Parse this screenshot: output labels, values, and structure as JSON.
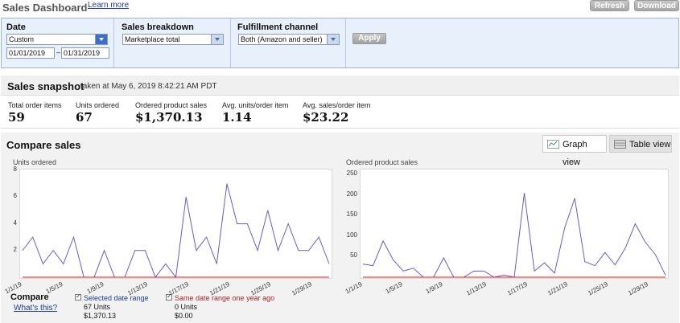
{
  "header": {
    "title": "Sales Dashboard",
    "learn_more": "Learn more",
    "refresh": "Refresh",
    "download": "Download"
  },
  "filters": {
    "date": {
      "label": "Date",
      "selected": "Custom",
      "from": "01/01/2019",
      "separator": "–",
      "to": "01/31/2019"
    },
    "breakdown": {
      "label": "Sales breakdown",
      "selected": "Marketplace total"
    },
    "fulfillment": {
      "label": "Fulfillment channel",
      "selected": "Both (Amazon and seller)"
    },
    "apply": "Apply"
  },
  "snapshot": {
    "title": "Sales snapshot",
    "taken_at": "taken at May 6, 2019 8:42:21 AM PDT",
    "metrics": [
      {
        "label": "Total order items",
        "value": "59"
      },
      {
        "label": "Units ordered",
        "value": "67"
      },
      {
        "label": "Ordered product sales",
        "value": "$1,370.13"
      },
      {
        "label": "Avg. units/order item",
        "value": "1.14"
      },
      {
        "label": "Avg. sales/order item",
        "value": "$23.22"
      }
    ]
  },
  "compare": {
    "title": "Compare sales",
    "graph_view": "Graph view",
    "table_view": "Table view",
    "legend_title": "Compare",
    "whats_this": "What's this?",
    "selected": {
      "label": "Selected date range",
      "units": "67 Units",
      "sales": "$1,370.13"
    },
    "last_year": {
      "label": "Same date range one year ago",
      "units": "0 Units",
      "sales": "$0.00"
    },
    "colors": {
      "selected": "#6a5acd",
      "last_year": "#cc2222"
    }
  },
  "chart_data": [
    {
      "type": "line",
      "title": "Units ordered",
      "x_tick_labels": [
        "1/1/19",
        "1/5/19",
        "1/9/19",
        "1/13/19",
        "1/17/19",
        "1/21/19",
        "1/25/19",
        "1/29/19"
      ],
      "y_tick_labels": [
        "2",
        "4",
        "6",
        "8"
      ],
      "ylim": [
        0,
        8
      ],
      "series": [
        {
          "name": "Selected date range",
          "color": "#6a5acd",
          "values": [
            2,
            3,
            1,
            2,
            1,
            3,
            0,
            0,
            2,
            0,
            0,
            2,
            2,
            0,
            1,
            0,
            6,
            2,
            3,
            1,
            7,
            4,
            4,
            2,
            5,
            2,
            4,
            2,
            2,
            3,
            1
          ]
        },
        {
          "name": "Same date range one year ago",
          "color": "#cc2222",
          "values": [
            0,
            0,
            0,
            0,
            0,
            0,
            0,
            0,
            0,
            0,
            0,
            0,
            0,
            0,
            0,
            0,
            0,
            0,
            0,
            0,
            0,
            0,
            0,
            0,
            0,
            0,
            0,
            0,
            0,
            0,
            0
          ]
        }
      ]
    },
    {
      "type": "line",
      "title": "Ordered product sales",
      "x_tick_labels": [
        "1/1/19",
        "1/5/19",
        "1/9/19",
        "1/13/19",
        "1/17/19",
        "1/21/19",
        "1/25/19",
        "1/29/19"
      ],
      "y_tick_labels": [
        "50",
        "100",
        "150",
        "200",
        "250"
      ],
      "ylim": [
        0,
        260
      ],
      "series": [
        {
          "name": "Selected date range",
          "color": "#6a5acd",
          "values": [
            32,
            28,
            88,
            42,
            15,
            22,
            0,
            0,
            47,
            0,
            0,
            15,
            15,
            0,
            5,
            0,
            205,
            15,
            35,
            10,
            120,
            192,
            38,
            28,
            60,
            30,
            70,
            130,
            85,
            55,
            5
          ]
        },
        {
          "name": "Same date range one year ago",
          "color": "#cc2222",
          "values": [
            0,
            0,
            0,
            0,
            0,
            0,
            0,
            0,
            0,
            0,
            0,
            0,
            0,
            0,
            0,
            0,
            0,
            0,
            0,
            0,
            0,
            0,
            0,
            0,
            0,
            0,
            0,
            0,
            0,
            0,
            0
          ]
        }
      ]
    }
  ]
}
